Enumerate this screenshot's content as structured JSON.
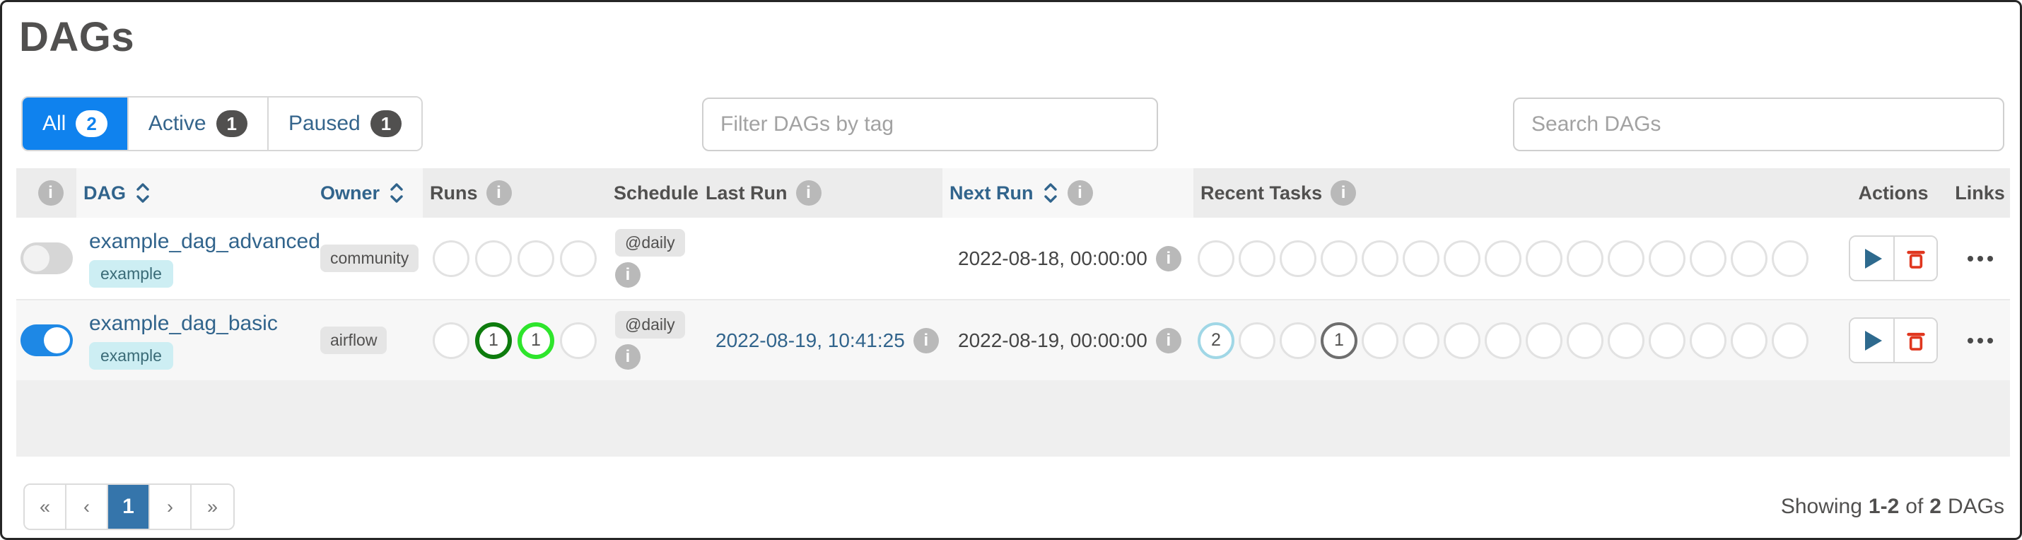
{
  "title": "DAGs",
  "tabs": [
    {
      "label": "All",
      "count": "2",
      "active": true
    },
    {
      "label": "Active",
      "count": "1",
      "active": false
    },
    {
      "label": "Paused",
      "count": "1",
      "active": false
    }
  ],
  "filter_tag": {
    "placeholder": "Filter DAGs by tag"
  },
  "search": {
    "placeholder": "Search DAGs"
  },
  "table": {
    "columns": {
      "dag": "DAG",
      "owner": "Owner",
      "runs": "Runs",
      "schedule": "Schedule",
      "last_run": "Last Run",
      "next_run": "Next Run",
      "recent_tasks": "Recent Tasks",
      "actions": "Actions",
      "links": "Links"
    },
    "runs_states": [
      "queued",
      "success",
      "running",
      "failed"
    ],
    "recent_tasks_states": [
      "none",
      "removed",
      "scheduled",
      "queued",
      "running",
      "success",
      "restarting",
      "failed",
      "up_for_retry",
      "up_for_reschedule",
      "upstream_failed",
      "skipped",
      "sensing",
      "deferred",
      "shutdown"
    ],
    "rows": [
      {
        "dag_id": "example_dag_advanced",
        "paused": true,
        "tags": [
          "example"
        ],
        "owner": "community",
        "runs": {},
        "schedule": "@daily",
        "last_run": null,
        "next_run": "2022-08-18, 00:00:00",
        "recent_tasks": {}
      },
      {
        "dag_id": "example_dag_basic",
        "paused": false,
        "tags": [
          "example"
        ],
        "owner": "airflow",
        "runs": {
          "success": 1,
          "running": 1
        },
        "schedule": "@daily",
        "last_run": "2022-08-19, 10:41:25",
        "next_run": "2022-08-19, 00:00:00",
        "recent_tasks": {
          "none": 2,
          "queued": 1
        }
      }
    ]
  },
  "state_colors": {
    "queued": "#6e6e6e",
    "running": "#2ee52c",
    "success": "#0e7c0e",
    "failed": "#e43921",
    "none": "#a0d7e6"
  },
  "pagination": {
    "first": "«",
    "prev": "‹",
    "active_page": "1",
    "next": "›",
    "last": "»"
  },
  "summary": {
    "prefix": "Showing",
    "range": "1-2",
    "middle": "of",
    "total": "2",
    "suffix": "DAGs"
  },
  "colors": {
    "accent_blue": "#0f82ee",
    "link_blue": "#31648c",
    "toggle_on": "#1e88e5",
    "active_page_bg": "#3575ab",
    "delete_red": "#e0371f"
  }
}
